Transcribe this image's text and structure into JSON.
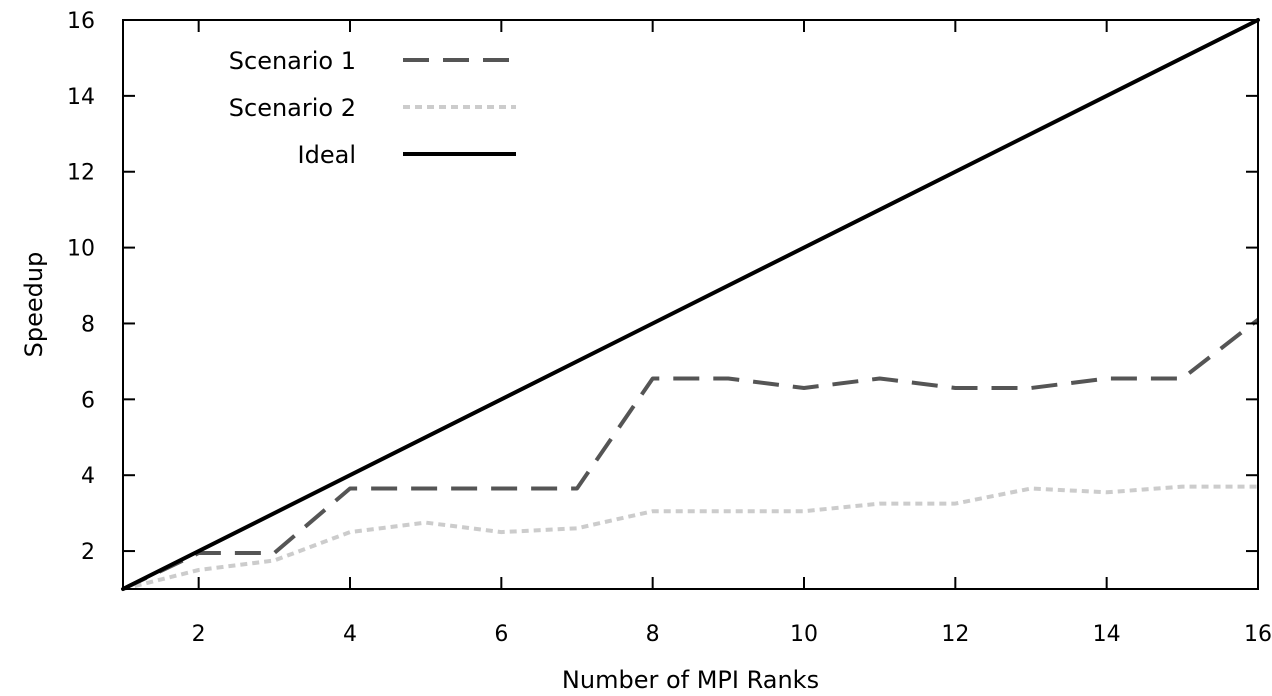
{
  "chart_data": {
    "type": "line",
    "xlabel": "Number of MPI Ranks",
    "ylabel": "Speedup",
    "xlim": [
      1,
      16
    ],
    "ylim": [
      1,
      16
    ],
    "x_ticks": [
      2,
      4,
      6,
      8,
      10,
      12,
      14,
      16
    ],
    "y_ticks": [
      2,
      4,
      6,
      8,
      10,
      12,
      14,
      16
    ],
    "grid": false,
    "legend_position": "top-left",
    "series": [
      {
        "name": "Scenario 1",
        "color": "#555555",
        "dash": "dashed",
        "x": [
          1,
          2,
          3,
          4,
          5,
          6,
          7,
          8,
          9,
          10,
          11,
          12,
          13,
          14,
          15,
          16
        ],
        "y": [
          1.0,
          1.95,
          1.95,
          3.65,
          3.65,
          3.65,
          3.65,
          6.55,
          6.55,
          6.3,
          6.55,
          6.3,
          6.3,
          6.55,
          6.55,
          8.1
        ]
      },
      {
        "name": "Scenario 2",
        "color": "#cccccc",
        "dash": "dotted",
        "x": [
          1,
          2,
          3,
          4,
          5,
          6,
          7,
          8,
          9,
          10,
          11,
          12,
          13,
          14,
          15,
          16
        ],
        "y": [
          1.0,
          1.5,
          1.75,
          2.5,
          2.75,
          2.5,
          2.6,
          3.05,
          3.05,
          3.05,
          3.25,
          3.25,
          3.65,
          3.55,
          3.7,
          3.7
        ]
      },
      {
        "name": "Ideal",
        "color": "#000000",
        "dash": "solid",
        "x": [
          1,
          16
        ],
        "y": [
          1,
          16
        ]
      }
    ]
  }
}
